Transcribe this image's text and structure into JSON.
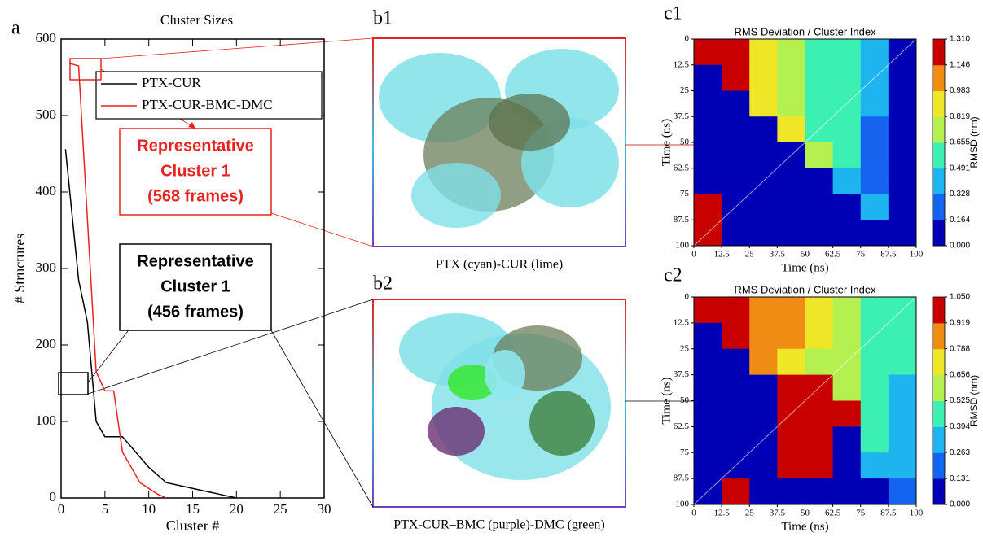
{
  "chart_data": [
    {
      "type": "line",
      "label": "a",
      "title": "Cluster Sizes",
      "xlabel": "Cluster #",
      "ylabel": "# Structures",
      "xlim": [
        0,
        30
      ],
      "xticks": [
        0,
        5,
        10,
        15,
        20,
        25,
        30
      ],
      "ylim": [
        0,
        600
      ],
      "yticks": [
        0,
        100,
        200,
        300,
        400,
        500,
        600
      ],
      "legend": "upper right",
      "series": [
        {
          "name": "PTX-CUR",
          "color": "#000000",
          "x": [
            0.5,
            2,
            3,
            4,
            5,
            7,
            10,
            12,
            14,
            16,
            18,
            20
          ],
          "values": [
            456,
            285,
            230,
            100,
            80,
            80,
            40,
            20,
            15,
            10,
            5,
            0
          ]
        },
        {
          "name": "PTX-CUR-BMC-DMC",
          "color": "#e8231f",
          "x": [
            1,
            2,
            4,
            5,
            6,
            7,
            8,
            9,
            11,
            12
          ],
          "values": [
            568,
            565,
            165,
            140,
            140,
            60,
            40,
            20,
            5,
            0
          ]
        }
      ]
    },
    {
      "type": "heatmap",
      "label": "c1",
      "title": "RMS Deviation / Cluster Index",
      "xlabel": "Time (ns)",
      "ylabel": "Time (ns)",
      "colorbar_label": "RMSD (nm)",
      "xlim": [
        0,
        100
      ],
      "xticks": [
        0,
        12.5,
        25,
        37.5,
        50,
        62.5,
        75,
        87.5,
        100
      ],
      "ylim": [
        0,
        100
      ],
      "yticks": [
        0,
        12.5,
        25,
        37.5,
        50,
        62.5,
        75,
        87.5,
        100
      ],
      "y_inverted": true,
      "clim": [
        0,
        1.31
      ],
      "cticks": [
        {
          "value": 1.31,
          "label": "1.310"
        },
        1.146,
        0.983,
        0.819,
        0.655,
        0.491,
        0.328,
        0.164,
        {
          "value": 0,
          "label": "0.000"
        }
      ],
      "colors": [
        "#0000b4",
        "#1464f0",
        "#1eb4f0",
        "#3cf0b4",
        "#b4f050",
        "#f0e628",
        "#f08c14",
        "#c80000"
      ],
      "values": [
        [
          1.31,
          1.15,
          0.9,
          0.8,
          0.6,
          0.5,
          0.35,
          0.1
        ],
        [
          0,
          1.15,
          0.9,
          0.8,
          0.6,
          0.5,
          0.35,
          0.1
        ],
        [
          0,
          0,
          0.98,
          0.8,
          0.6,
          0.5,
          0.35,
          0.1
        ],
        [
          0,
          0,
          0,
          0.82,
          0.6,
          0.5,
          0.3,
          0.1
        ],
        [
          0,
          0,
          0,
          0,
          0.66,
          0.5,
          0.3,
          0.1
        ],
        [
          0,
          0,
          0,
          0,
          0,
          0.49,
          0.3,
          0.1
        ],
        [
          1.31,
          0,
          0,
          0,
          0,
          0,
          0.33,
          0.1
        ],
        [
          1.31,
          0,
          0,
          0,
          0,
          0,
          0,
          0.16
        ]
      ]
    },
    {
      "type": "heatmap",
      "label": "c2",
      "title": "RMS Deviation / Cluster Index",
      "xlabel": "Time (ns)",
      "ylabel": "Time (ns)",
      "colorbar_label": "RMSD (nm)",
      "xlim": [
        0,
        100
      ],
      "xticks": [
        0,
        12.5,
        25,
        37.5,
        50,
        62.5,
        75,
        87.5,
        100
      ],
      "ylim": [
        0,
        100
      ],
      "yticks": [
        0,
        12.5,
        25,
        37.5,
        50,
        62.5,
        75,
        87.5,
        100
      ],
      "y_inverted": true,
      "clim": [
        0,
        1.05
      ],
      "cticks": [
        {
          "value": 1.05,
          "label": "1.050"
        },
        0.919,
        0.788,
        0.656,
        0.525,
        0.394,
        0.263,
        0.131,
        {
          "value": 0,
          "label": "0.000"
        }
      ],
      "colors": [
        "#0000b4",
        "#1464f0",
        "#1eb4f0",
        "#3cf0b4",
        "#b4f050",
        "#f0e628",
        "#f08c14",
        "#c80000"
      ],
      "values": [
        [
          1.05,
          0.95,
          0.85,
          0.8,
          0.7,
          0.6,
          0.45,
          0.4
        ],
        [
          0,
          0.95,
          0.85,
          0.8,
          0.7,
          0.6,
          0.45,
          0.4
        ],
        [
          0,
          0,
          0.8,
          0.75,
          0.65,
          0.55,
          0.45,
          0.4
        ],
        [
          0,
          0,
          0,
          1.05,
          1.05,
          0.55,
          0.45,
          0.35
        ],
        [
          0,
          0,
          0,
          1.05,
          1.05,
          1.05,
          0.4,
          0.3
        ],
        [
          0,
          0,
          0,
          1.05,
          1.05,
          0,
          0.4,
          0.3
        ],
        [
          0,
          0,
          0,
          1.05,
          1.05,
          0,
          0.3,
          0.3
        ],
        [
          0,
          1.05,
          0,
          0,
          0,
          0,
          0,
          0.25
        ]
      ]
    }
  ],
  "figure": {
    "annotations": [
      {
        "lines": [
          "Representative",
          "Cluster 1",
          "(568 frames)"
        ],
        "color": "#e8231f"
      },
      {
        "lines": [
          "Representative",
          "Cluster 1",
          "(456 frames)"
        ],
        "color": "#000000"
      }
    ],
    "images": [
      {
        "label": "b1",
        "caption": "PTX (cyan)-CUR (lime)"
      },
      {
        "label": "b2",
        "caption": "PTX-CUR–BMC (purple)-DMC (green)"
      }
    ]
  }
}
